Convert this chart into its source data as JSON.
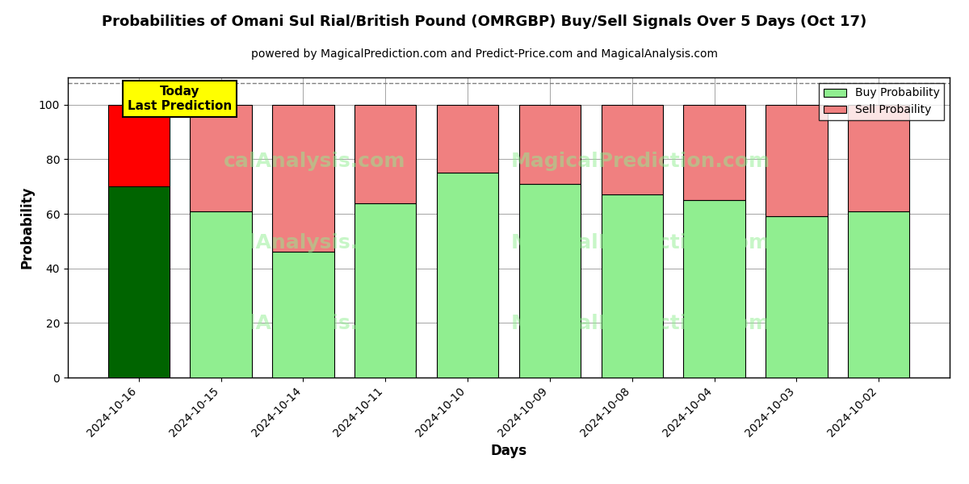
{
  "title": "Probabilities of Omani Sul Rial/British Pound (OMRGBP) Buy/Sell Signals Over 5 Days (Oct 17)",
  "subtitle": "powered by MagicalPrediction.com and Predict-Price.com and MagicalAnalysis.com",
  "xlabel": "Days",
  "ylabel": "Probability",
  "categories": [
    "2024-10-16",
    "2024-10-15",
    "2024-10-14",
    "2024-10-11",
    "2024-10-10",
    "2024-10-09",
    "2024-10-08",
    "2024-10-04",
    "2024-10-03",
    "2024-10-02"
  ],
  "buy_values": [
    70,
    61,
    46,
    64,
    75,
    71,
    67,
    65,
    59,
    61
  ],
  "sell_values": [
    30,
    39,
    54,
    36,
    25,
    29,
    33,
    35,
    41,
    39
  ],
  "today_buy_color": "#006400",
  "today_sell_color": "#FF0000",
  "buy_color": "#90EE90",
  "sell_color": "#F08080",
  "today_label": "Today\nLast Prediction",
  "legend_buy": "Buy Probability",
  "legend_sell": "Sell Probaility",
  "ylim": [
    0,
    110
  ],
  "yticks": [
    0,
    20,
    40,
    60,
    80,
    100
  ],
  "dashed_line_y": 108,
  "background_color": "#ffffff",
  "bar_edgecolor": "#000000",
  "bar_linewidth": 0.8
}
